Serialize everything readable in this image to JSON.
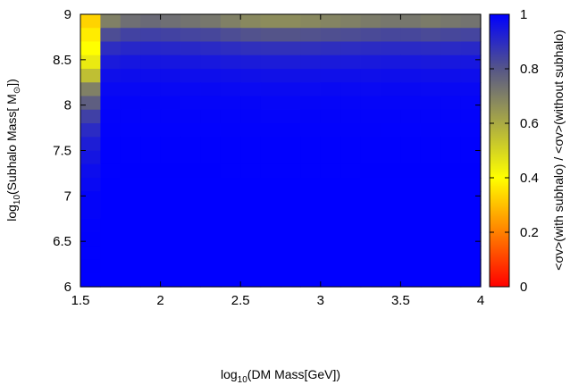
{
  "chart_data": {
    "type": "heatmap",
    "title": "",
    "xlabel_main": "log",
    "xlabel_sub": "10",
    "xlabel_rest": "(DM Mass[GeV])",
    "ylabel_main": "log",
    "ylabel_sub": "10",
    "ylabel_rest": "(Subhalo Mass[ M",
    "ylabel_sun_sub": "⊙",
    "ylabel_end": "])",
    "colorbar_label": "<σv>(with subhalo) / <σv>(without subhalo)",
    "xlim": [
      1.5,
      4
    ],
    "ylim": [
      6,
      9
    ],
    "xticks": [
      "1.5",
      "2",
      "2.5",
      "3",
      "3.5",
      "4"
    ],
    "yticks": [
      "6",
      "6.5",
      "7",
      "7.5",
      "8",
      "8.5",
      "9"
    ],
    "colorbar_ticks": [
      "0",
      "0.2",
      "0.4",
      "0.6",
      "0.8",
      "1"
    ],
    "colorbar_range": [
      0,
      1
    ],
    "colormap": [
      {
        "v": 0.0,
        "color": "#ff0000"
      },
      {
        "v": 0.2,
        "color": "#ff8000"
      },
      {
        "v": 0.4,
        "color": "#ffff00"
      },
      {
        "v": 0.6,
        "color": "#aaaa44"
      },
      {
        "v": 0.8,
        "color": "#555588"
      },
      {
        "v": 1.0,
        "color": "#0000ff"
      }
    ],
    "grid": {
      "nx": 20,
      "ny": 20,
      "description": "cell values computed as ratio; near 1 except top rows and leftmost column"
    },
    "left_column_values_top_down": [
      0.33,
      0.37,
      0.4,
      0.45,
      0.55,
      0.7,
      0.78,
      0.85,
      0.9,
      0.93,
      0.95,
      0.97,
      0.98,
      0.99,
      0.99,
      0.995,
      0.997,
      0.998,
      0.999,
      1.0
    ],
    "top_row_values": [
      0.33,
      0.7,
      0.74,
      0.75,
      0.74,
      0.73,
      0.72,
      0.7,
      0.68,
      0.67,
      0.67,
      0.68,
      0.69,
      0.7,
      0.71,
      0.72,
      0.72,
      0.71,
      0.72,
      0.73
    ],
    "row_decay": [
      1.0,
      0.6,
      0.35,
      0.2,
      0.12,
      0.07,
      0.04,
      0.025,
      0.015,
      0.01,
      0.006,
      0.004,
      0.002,
      0.001,
      0.0005,
      0.0003,
      0.0002,
      0.0001,
      0.0,
      0.0
    ]
  }
}
